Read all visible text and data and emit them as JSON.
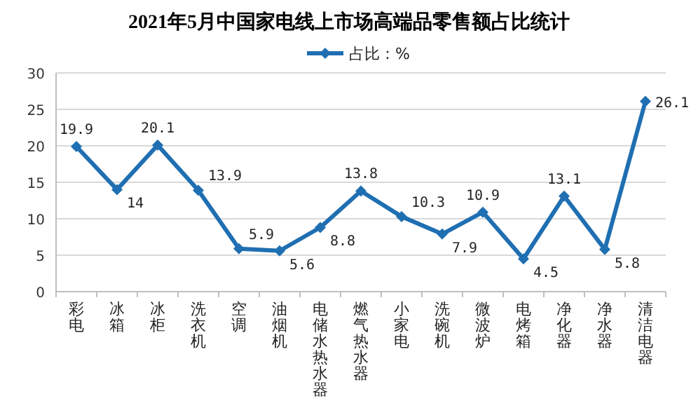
{
  "chart_data": {
    "type": "line",
    "title": "2021年5月中国家电线上市场高端品零售额占比统计",
    "categories": [
      "彩电",
      "冰箱",
      "冰柜",
      "洗衣机",
      "空调",
      "油烟机",
      "电储水热水器",
      "燃气热水器",
      "小家电",
      "洗碗机",
      "微波炉",
      "电烤箱",
      "净化器",
      "净水器",
      "清洁电器"
    ],
    "series": [
      {
        "name": "占比：%",
        "color": "#1f6fb2",
        "values": [
          19.9,
          14,
          20.1,
          13.9,
          5.9,
          5.6,
          8.8,
          13.8,
          10.3,
          7.9,
          10.9,
          4.5,
          13.1,
          5.8,
          26.1
        ]
      }
    ],
    "ylim": [
      0,
      30
    ],
    "yticks": [
      0,
      5,
      10,
      15,
      20,
      25,
      30
    ],
    "grid": "y",
    "legend": "top",
    "marker": "diamond",
    "line_style": "solid",
    "data_labels": true
  }
}
